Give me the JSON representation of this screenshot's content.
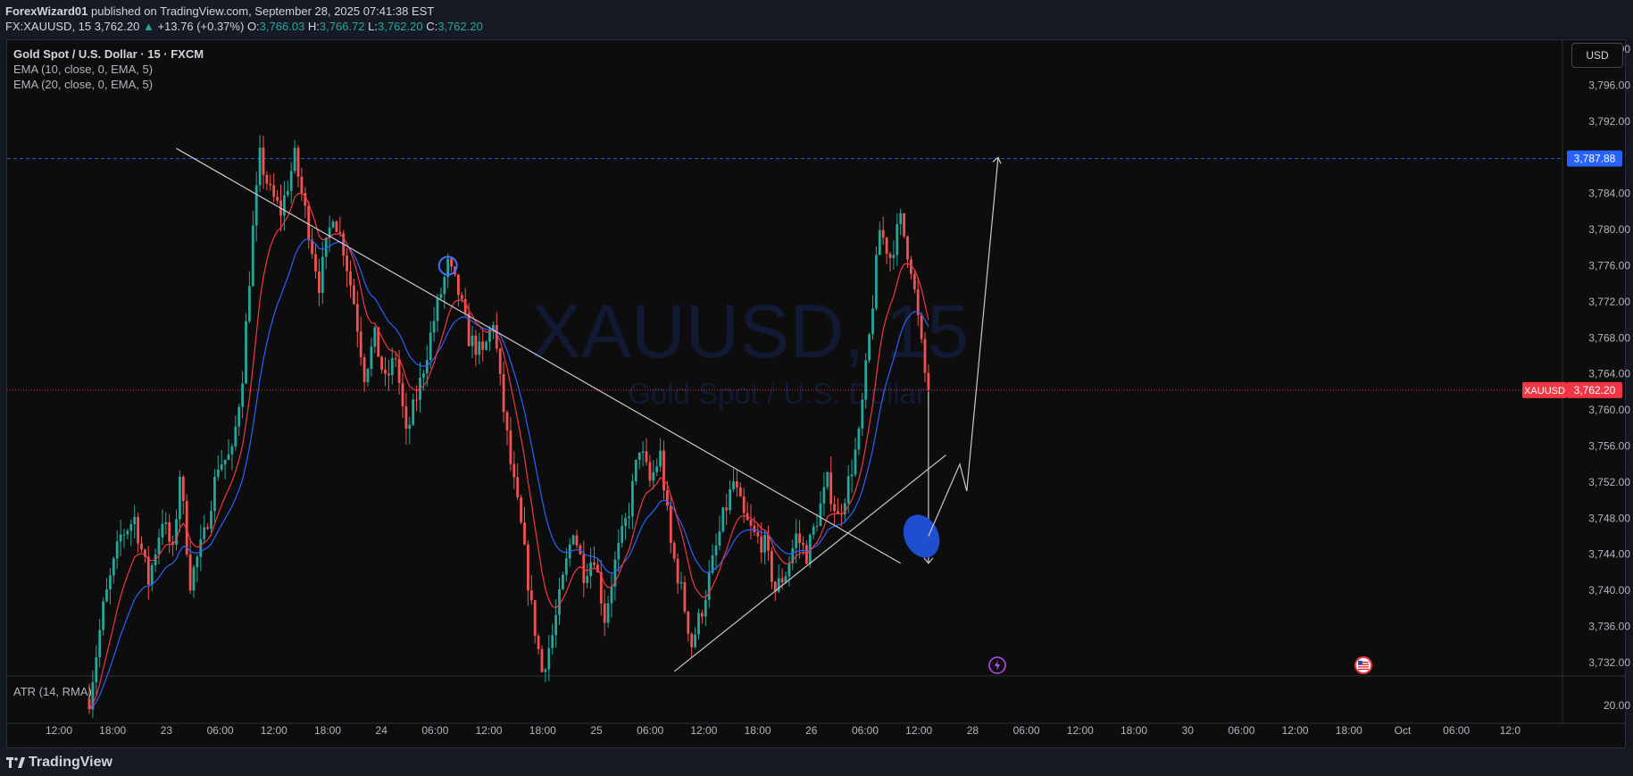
{
  "header": {
    "author": "ForexWizard01",
    "published_text": "published on TradingView.com, September 28, 2025 07:41:38 EST",
    "symbol_line": "FX:XAUUSD, 15",
    "last_price": "3,762.20",
    "change_text": "+13.76 (+0.37%)",
    "open_label": "O:",
    "open_value": "3,766.03",
    "high_label": "H:",
    "high_value": "3,766.72",
    "low_label": "L:",
    "low_value": "3,762.20",
    "close_label": "C:",
    "close_value": "3,762.20"
  },
  "legend": {
    "title": "Gold Spot / U.S. Dollar · 15 · FXCM",
    "ema1": "EMA (10, close, 0, EMA, 5)",
    "ema2": "EMA (20, close, 0, EMA, 5)"
  },
  "currency_button": "USD",
  "atr_label": "ATR (14, RMA)",
  "atr_value": "20.00",
  "watermark": {
    "symbol": "XAUUSD, 15",
    "name": "Gold Spot / U.S. Dollar"
  },
  "footer": {
    "brand": "TradingView"
  },
  "colors": {
    "up": "#26a69a",
    "down": "#ef5350",
    "ema_fast": "#f23645",
    "ema_slow": "#2962ff",
    "price_tag": "#f23645",
    "level_tag": "#2962ff",
    "drawing": "#c8cad4"
  },
  "chart_data": {
    "type": "candlestick",
    "symbol": "XAUUSD",
    "interval": "15",
    "y_ticks": [
      3800,
      3796,
      3792,
      3784,
      3780,
      3776,
      3772,
      3768,
      3764,
      3760,
      3756,
      3752,
      3748,
      3744,
      3740,
      3736,
      3732
    ],
    "y_tick_labels": [
      "3,800.00",
      "3,796.00",
      "3,792.00",
      "3,784.00",
      "3,780.00",
      "3,776.00",
      "3,772.00",
      "3,768.00",
      "3,764.00",
      "3,760.00",
      "3,756.00",
      "3,752.00",
      "3,748.00",
      "3,744.00",
      "3,740.00",
      "3,736.00",
      "3,732.00"
    ],
    "ylim": [
      3730.5,
      3801
    ],
    "x_tick_labels": [
      "12:00",
      "18:00",
      "23",
      "06:00",
      "12:00",
      "18:00",
      "24",
      "06:00",
      "12:00",
      "18:00",
      "25",
      "06:00",
      "12:00",
      "18:00",
      "26",
      "06:00",
      "12:00",
      "28",
      "06:00",
      "12:00",
      "18:00",
      "30",
      "06:00",
      "12:00",
      "18:00",
      "Oct",
      "06:00",
      "12:0"
    ],
    "price_line": {
      "value": 3762.2,
      "label": "3,762.20",
      "tag": "XAUUSD"
    },
    "level_line": {
      "value": 3787.88,
      "label": "3,787.88"
    },
    "price_path": [
      [
        0,
        3728
      ],
      [
        4,
        3738
      ],
      [
        9,
        3746
      ],
      [
        13,
        3748
      ],
      [
        17,
        3741
      ],
      [
        21,
        3748
      ],
      [
        24,
        3744
      ],
      [
        26,
        3753
      ],
      [
        29,
        3741
      ],
      [
        33,
        3746
      ],
      [
        37,
        3754
      ],
      [
        41,
        3755
      ],
      [
        44,
        3764
      ],
      [
        47,
        3780
      ],
      [
        49,
        3788
      ],
      [
        52,
        3784
      ],
      [
        55,
        3782
      ],
      [
        59,
        3788
      ],
      [
        63,
        3780
      ],
      [
        66,
        3774
      ],
      [
        70,
        3782
      ],
      [
        73,
        3778
      ],
      [
        76,
        3772
      ],
      [
        79,
        3764
      ],
      [
        82,
        3768
      ],
      [
        85,
        3763
      ],
      [
        88,
        3766
      ],
      [
        91,
        3757
      ],
      [
        95,
        3763
      ],
      [
        99,
        3770
      ],
      [
        103,
        3776
      ],
      [
        106,
        3773
      ],
      [
        109,
        3768
      ],
      [
        113,
        3766
      ],
      [
        116,
        3770
      ],
      [
        118,
        3763
      ],
      [
        121,
        3754
      ],
      [
        124,
        3747
      ],
      [
        127,
        3738
      ],
      [
        130,
        3731
      ],
      [
        133,
        3735
      ],
      [
        136,
        3741
      ],
      [
        139,
        3747
      ],
      [
        142,
        3742
      ],
      [
        145,
        3744
      ],
      [
        148,
        3737
      ],
      [
        151,
        3743
      ],
      [
        155,
        3749
      ],
      [
        158,
        3756
      ],
      [
        161,
        3752
      ],
      [
        164,
        3755
      ],
      [
        167,
        3745
      ],
      [
        170,
        3740
      ],
      [
        173,
        3734
      ],
      [
        176,
        3738
      ],
      [
        179,
        3743
      ],
      [
        182,
        3748
      ],
      [
        185,
        3752
      ],
      [
        188,
        3748
      ],
      [
        191,
        3746
      ],
      [
        194,
        3745
      ],
      [
        197,
        3740
      ],
      [
        200,
        3742
      ],
      [
        203,
        3746
      ],
      [
        206,
        3744
      ],
      [
        209,
        3748
      ],
      [
        212,
        3752
      ],
      [
        215,
        3748
      ],
      [
        218,
        3752
      ],
      [
        221,
        3757
      ],
      [
        224,
        3768
      ],
      [
        227,
        3780
      ],
      [
        230,
        3777
      ],
      [
        233,
        3781
      ],
      [
        236,
        3776
      ],
      [
        238,
        3770
      ],
      [
        240,
        3764
      ],
      [
        241,
        3762.2
      ]
    ],
    "drawings": {
      "descending_trendline": [
        [
          25,
          3789
        ],
        [
          233,
          3743
        ]
      ],
      "ascending_trendline": [
        [
          168,
          3731
        ],
        [
          246,
          3755
        ]
      ],
      "projected_path": [
        [
          241,
          3746
        ],
        [
          250,
          3754
        ],
        [
          252,
          3751
        ],
        [
          261,
          3788
        ]
      ],
      "drop_arrow": [
        [
          241,
          3762
        ],
        [
          241,
          3743
        ]
      ],
      "marked_zone_center": [
        239,
        3746
      ],
      "circle_marker": [
        103,
        3776
      ]
    },
    "event_markers": [
      "lightning-event",
      "us-flag-event"
    ]
  }
}
